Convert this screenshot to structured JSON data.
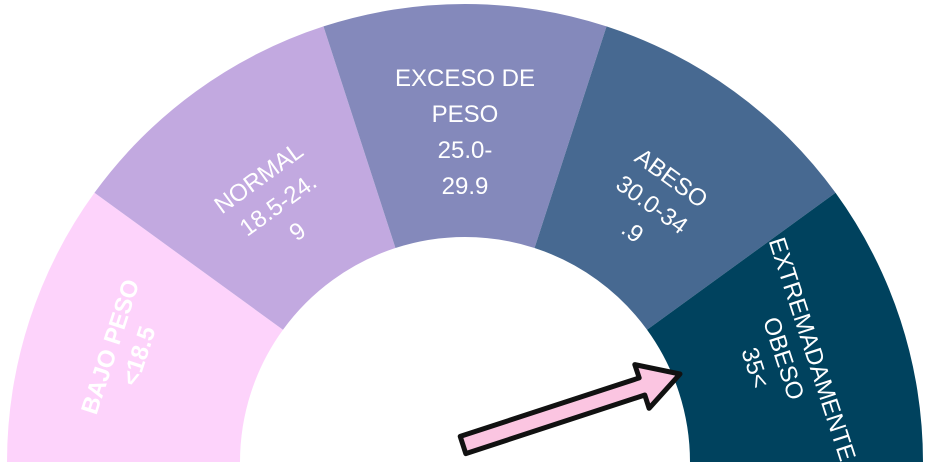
{
  "gauge": {
    "segments": [
      {
        "id": "bajo-peso",
        "lines": [
          "BAJO PESO",
          "<18.5"
        ],
        "color": "#fdd3fb",
        "bold": true
      },
      {
        "id": "normal",
        "lines": [
          "NORMAL",
          "18.5-24.",
          "9"
        ],
        "color": "#c2a9e0",
        "bold": false
      },
      {
        "id": "exceso-de-peso",
        "lines": [
          "EXCESO DE",
          "PESO",
          "25.0-",
          "29.9"
        ],
        "color": "#8489bb",
        "bold": false
      },
      {
        "id": "abeso",
        "lines": [
          "ABESO",
          "30.0-34",
          ".9"
        ],
        "color": "#476991",
        "bold": false
      },
      {
        "id": "extremadamente-obeso",
        "lines": [
          "EXTREMADAMENTE",
          "OBESO",
          "35<"
        ],
        "color": "#00425e",
        "bold": false
      }
    ],
    "pointer": {
      "color": "#fbc5e1",
      "outline": "#111111"
    }
  }
}
